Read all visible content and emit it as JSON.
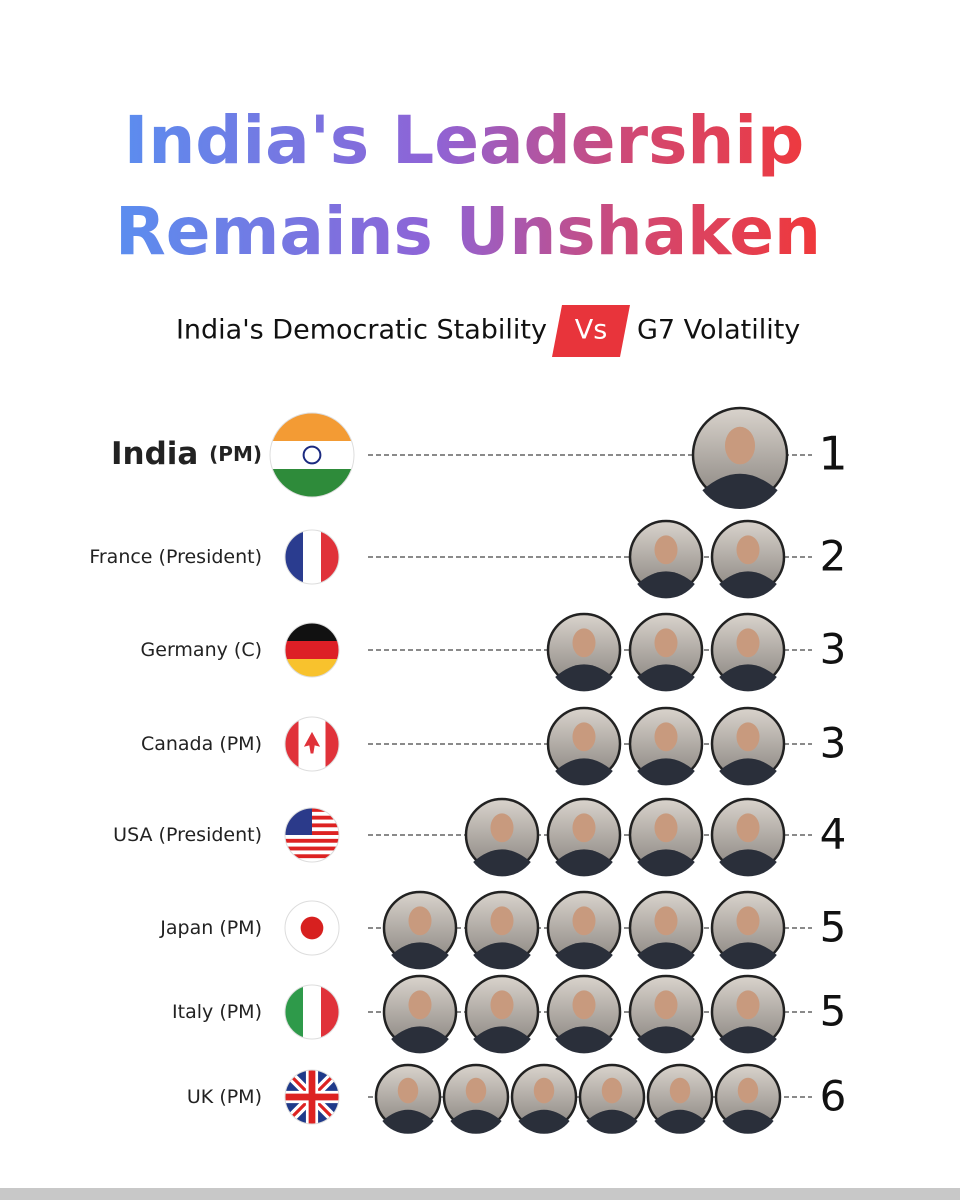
{
  "title": {
    "line1": "India's Leadership",
    "line2": "Remains Unshaken"
  },
  "subtitle": {
    "left": "India's Democratic Stability",
    "badge": "Vs",
    "right": "G7 Volatility"
  },
  "rows": [
    {
      "country": "India",
      "role": "(PM)",
      "leaders": 1
    },
    {
      "country": "France",
      "role": "(President)",
      "leaders": 2
    },
    {
      "country": "Germany",
      "role": "(C)",
      "leaders": 3
    },
    {
      "country": "Canada",
      "role": "(PM)",
      "leaders": 3
    },
    {
      "country": "USA",
      "role": "(President)",
      "leaders": 4
    },
    {
      "country": "Japan",
      "role": "(PM)",
      "leaders": 5
    },
    {
      "country": "Italy",
      "role": "(PM)",
      "leaders": 5
    },
    {
      "country": "UK",
      "role": "(PM)",
      "leaders": 6
    }
  ]
}
